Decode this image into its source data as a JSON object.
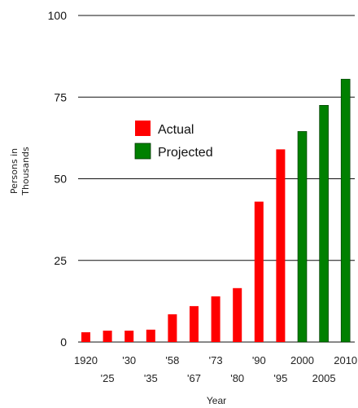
{
  "chart_data": {
    "type": "bar",
    "title": "",
    "xlabel": "Year",
    "ylabel_line1": "Persons in",
    "ylabel_line2": "Thousands",
    "ylim": [
      0,
      100
    ],
    "yticks": [
      0,
      25,
      50,
      75,
      100
    ],
    "grid": true,
    "legend_position": "top-center",
    "tick_labels_top": [
      "1920",
      "'30",
      "'58",
      "'73",
      "'90",
      "2000",
      "2010"
    ],
    "tick_labels_bottom": [
      "'25",
      "'35",
      "'67",
      "'80",
      "'95",
      "2005"
    ],
    "categories": [
      "1920",
      "1925",
      "1930",
      "1935",
      "1958",
      "1967",
      "1973",
      "1980",
      "1990",
      "1995",
      "2000",
      "2005",
      "2010"
    ],
    "series": [
      {
        "name": "Actual",
        "color": "#ff0000",
        "values": [
          3,
          3.5,
          3.5,
          3.8,
          8.5,
          11,
          14,
          16.5,
          43,
          59,
          null,
          null,
          null
        ]
      },
      {
        "name": "Projected",
        "color": "#008000",
        "values": [
          null,
          null,
          null,
          null,
          null,
          null,
          null,
          null,
          null,
          null,
          64.5,
          72.5,
          80.5
        ]
      }
    ]
  }
}
